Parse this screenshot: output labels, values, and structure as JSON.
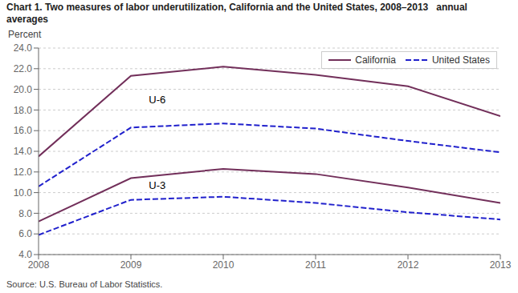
{
  "chart_data": {
    "type": "line",
    "title": "Chart 1. Two measures of labor underutilization, California and the United States, 2008–2013   annual averages",
    "y_label": "Percent",
    "source": "Source: U.S. Bureau of Labor Statistics.",
    "x": [
      2008,
      2009,
      2010,
      2011,
      2012,
      2013
    ],
    "xlim": [
      2008,
      2013
    ],
    "xticks": [
      2008,
      2009,
      2010,
      2011,
      2012,
      2013
    ],
    "ylim": [
      4.0,
      24.0
    ],
    "yticks": [
      {
        "value": 4.0,
        "label": "4.0"
      },
      {
        "value": 6.0,
        "label": "6.0"
      },
      {
        "value": 8.0,
        "label": "8.0"
      },
      {
        "value": 10.0,
        "label": "10.0"
      },
      {
        "value": 12.0,
        "label": "12.0"
      },
      {
        "value": 14.0,
        "label": "14.0"
      },
      {
        "value": 16.0,
        "label": "16.0"
      },
      {
        "value": 18.0,
        "label": "18.0"
      },
      {
        "value": 20.0,
        "label": "20.0"
      },
      {
        "value": 22.0,
        "label": "22.0"
      },
      {
        "value": 24.0,
        "label": "24.0"
      }
    ],
    "grid": "y",
    "legend": "upper right",
    "series": [
      {
        "name": "California",
        "color": "#722F5A",
        "line_style": "solid",
        "values": [
          13.5,
          21.3,
          22.2,
          21.4,
          20.3,
          17.4
        ]
      },
      {
        "name": "United States",
        "color": "#2020CC",
        "line_style": "dashed",
        "values": [
          10.6,
          16.3,
          16.7,
          16.2,
          15.0,
          13.9
        ]
      },
      {
        "name": "California",
        "color": "#722F5A",
        "line_style": "solid",
        "values": [
          7.2,
          11.4,
          12.3,
          11.8,
          10.5,
          9.0
        ]
      },
      {
        "name": "United States",
        "color": "#2020CC",
        "line_style": "dashed",
        "values": [
          5.9,
          9.3,
          9.6,
          9.0,
          8.1,
          7.4
        ]
      }
    ],
    "annotations": [
      {
        "text": "U-6",
        "x": 2009.15,
        "y": 19.0
      },
      {
        "text": "U-3",
        "x": 2009.15,
        "y": 10.75
      }
    ]
  }
}
